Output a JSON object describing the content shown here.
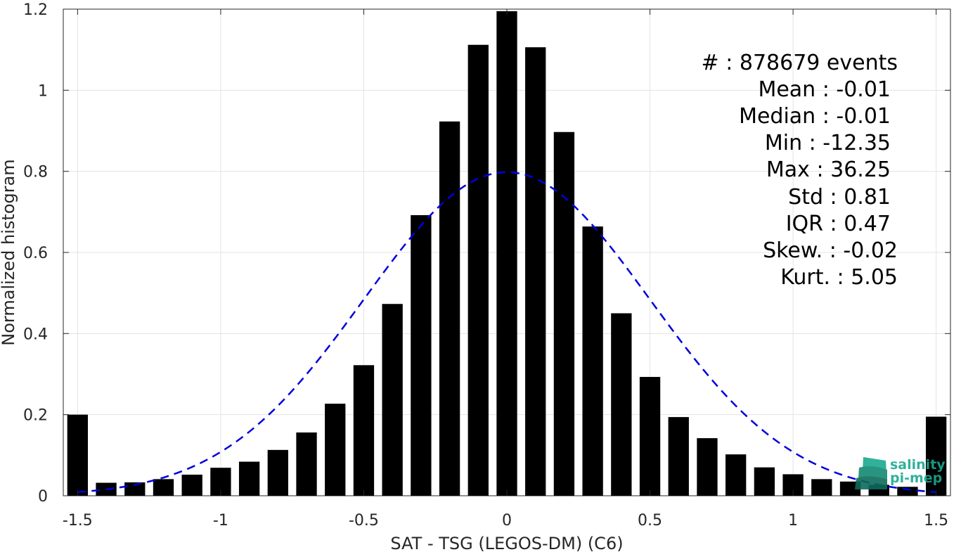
{
  "chart_data": {
    "type": "bar",
    "xlabel": "SAT - TSG (LEGOS-DM) (C6)",
    "ylabel": "Normalized histogram",
    "xlim": [
      -1.55,
      1.55
    ],
    "ylim": [
      0,
      1.2
    ],
    "grid": true,
    "xticks": [
      -1.5,
      -1,
      -0.5,
      0,
      0.5,
      1,
      1.5
    ],
    "xtick_labels": [
      "-1.5",
      "-1",
      "-0.5",
      "0",
      "0.5",
      "1",
      "1.5"
    ],
    "yticks": [
      0,
      0.2,
      0.4,
      0.6,
      0.8,
      1,
      1.2
    ],
    "ytick_labels": [
      "0",
      "0.2",
      "0.4",
      "0.6",
      "0.8",
      "1",
      "1.2"
    ],
    "bin_centers": [
      -1.5,
      -1.4,
      -1.3,
      -1.2,
      -1.1,
      -1.0,
      -0.9,
      -0.8,
      -0.7,
      -0.6,
      -0.5,
      -0.4,
      -0.3,
      -0.2,
      -0.1,
      0.0,
      0.1,
      0.2,
      0.3,
      0.4,
      0.5,
      0.6,
      0.7,
      0.8,
      0.9,
      1.0,
      1.1,
      1.2,
      1.3,
      1.4,
      1.5
    ],
    "values": [
      0.2,
      0.032,
      0.033,
      0.041,
      0.052,
      0.069,
      0.084,
      0.113,
      0.156,
      0.227,
      0.322,
      0.473,
      0.692,
      0.923,
      1.112,
      1.195,
      1.106,
      0.897,
      0.664,
      0.45,
      0.293,
      0.194,
      0.142,
      0.102,
      0.07,
      0.053,
      0.041,
      0.035,
      0.027,
      0.022,
      0.195
    ],
    "bar_color": "#000000",
    "gaussian_fit": {
      "mean": 0.0,
      "std": 0.5,
      "peak": 0.798,
      "color": "#0000dd",
      "style": "dashed",
      "x_range": [
        -1.5,
        1.5
      ]
    }
  },
  "stats": {
    "lines": [
      "#  : 878679 events",
      "Mean : -0.01",
      "Median : -0.01",
      "Min : -12.35",
      "Max : 36.25",
      "Std : 0.81",
      "IQR : 0.47",
      "Skew. : -0.02",
      "Kurt. : 5.05"
    ]
  },
  "logo": {
    "line1": "salinity",
    "line2": "pi-mep",
    "color": "#1aa98f"
  }
}
